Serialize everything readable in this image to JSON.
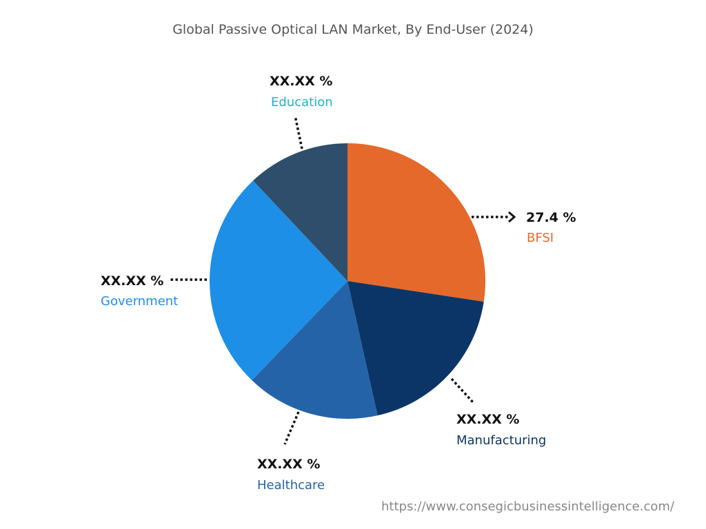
{
  "chart_data": {
    "type": "pie",
    "title": "Global Passive Optical LAN Market, By End-User (2024)",
    "start_angle": "top",
    "direction": "clockwise",
    "slices": [
      {
        "label": "BFSI",
        "value_label": "27.4 %",
        "value": 27.4,
        "color": "#E5692A",
        "label_color": "#E5692A"
      },
      {
        "label": "Manufacturing",
        "value_label": "XX.XX %",
        "value": 19.1,
        "color": "#0B3566",
        "label_color": "#0B3566"
      },
      {
        "label": "Healthcare",
        "value_label": "XX.XX %",
        "value": 15.7,
        "color": "#2563A8",
        "label_color": "#2563A8"
      },
      {
        "label": "Government",
        "value_label": "XX.XX %",
        "value": 25.8,
        "color": "#1E8FE6",
        "label_color": "#1E8FE6"
      },
      {
        "label": "Education",
        "value_label": "XX.XX %",
        "value": 12.0,
        "color": "#2F4E6B",
        "label_color": "#1BB5CF"
      }
    ]
  },
  "source_url": "https://www.consegicbusinessintelligence.com/"
}
